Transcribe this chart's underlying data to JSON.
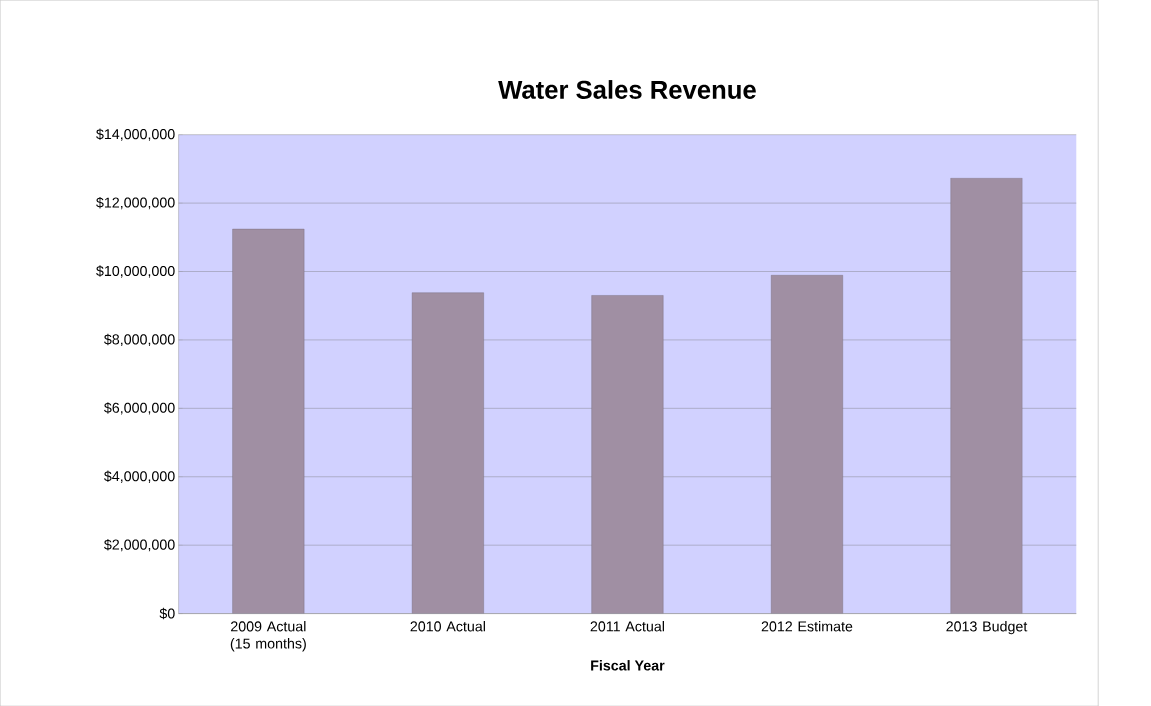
{
  "chart_data": {
    "type": "bar",
    "title": "Water Sales Revenue",
    "xlabel": "Fiscal Year",
    "categories": [
      "2009 Actual (15 months)",
      "2010 Actual",
      "2011 Actual",
      "2012 Estimate",
      "2013 Budget"
    ],
    "values": [
      11240000,
      9380000,
      9300000,
      9890000,
      12730000
    ],
    "color": "#a08fa3",
    "ylim": [
      0,
      14000000
    ],
    "yticks": [
      {
        "value": 0,
        "label": "$0"
      },
      {
        "value": 2000000,
        "label": "$2,000,000"
      },
      {
        "value": 4000000,
        "label": "$4,000,000"
      },
      {
        "value": 6000000,
        "label": "$6,000,000"
      },
      {
        "value": 8000000,
        "label": "$8,000,000"
      },
      {
        "value": 10000000,
        "label": "$10,000,000"
      },
      {
        "value": 12000000,
        "label": "$12,000,000"
      },
      {
        "value": 14000000,
        "label": "$14,000,000"
      }
    ],
    "grid": "y"
  }
}
